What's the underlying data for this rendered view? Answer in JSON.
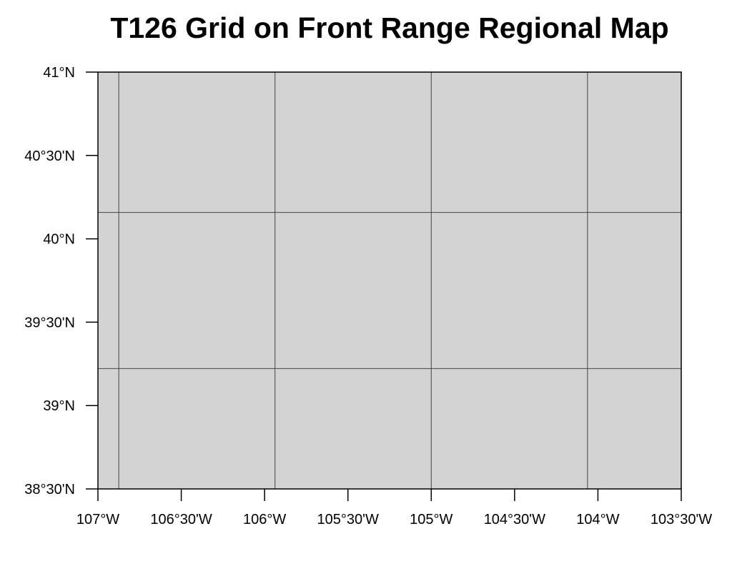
{
  "title": "T126 Grid on Front Range Regional Map",
  "map": {
    "extent": {
      "lon_min": -107.0,
      "lon_max": -103.5,
      "lat_min": 38.5,
      "lat_max": 41.0
    },
    "land_color": "#d3d3d3",
    "grid_line_color": "#444444",
    "grid_lons": [
      -106.875,
      -105.9375,
      -105.0,
      -104.0625
    ],
    "grid_lats": [
      40.1581,
      39.2219
    ],
    "x_ticks": [
      {
        "value": -107.0,
        "label": "107°W"
      },
      {
        "value": -106.5,
        "label": "106°30'W"
      },
      {
        "value": -106.0,
        "label": "106°W"
      },
      {
        "value": -105.5,
        "label": "105°30'W"
      },
      {
        "value": -105.0,
        "label": "105°W"
      },
      {
        "value": -104.5,
        "label": "104°30'W"
      },
      {
        "value": -104.0,
        "label": "104°W"
      },
      {
        "value": -103.5,
        "label": "103°30'W"
      }
    ],
    "y_ticks": [
      {
        "value": 41.0,
        "label": "41°N"
      },
      {
        "value": 40.5,
        "label": "40°30'N"
      },
      {
        "value": 40.0,
        "label": "40°N"
      },
      {
        "value": 39.5,
        "label": "39°30'N"
      },
      {
        "value": 39.0,
        "label": "39°N"
      },
      {
        "value": 38.5,
        "label": "38°30'N"
      }
    ]
  }
}
